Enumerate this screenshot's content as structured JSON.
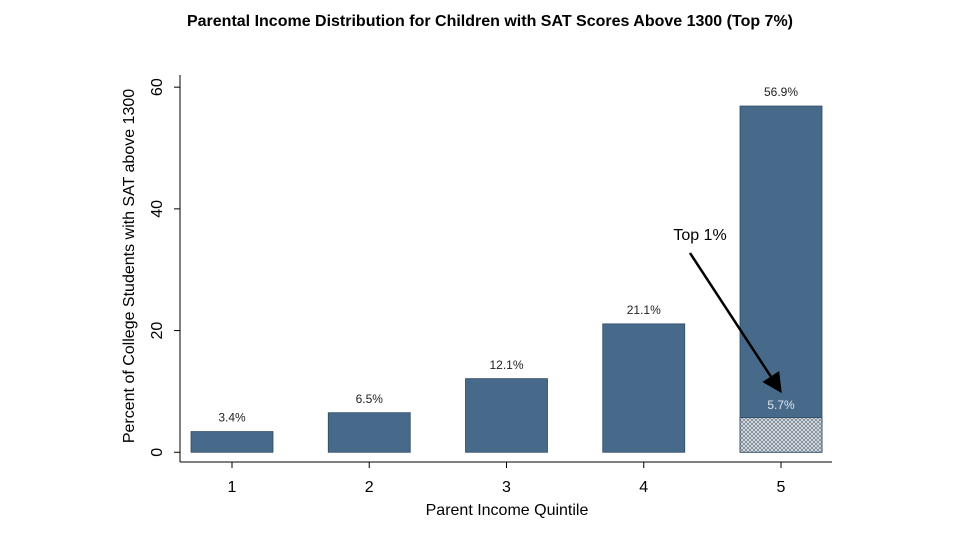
{
  "chart_data": {
    "type": "bar",
    "title": "Parental Income Distribution for Children with SAT Scores Above 1300 (Top 7%)",
    "x_label": "Parent Income Quintile",
    "y_label": "Percent of College Students with SAT above 1300",
    "categories": [
      "1",
      "2",
      "3",
      "4",
      "5"
    ],
    "values": [
      3.4,
      6.5,
      12.1,
      21.1,
      56.9
    ],
    "value_labels": [
      "3.4%",
      "6.5%",
      "12.1%",
      "21.1%",
      "56.9%"
    ],
    "color": "#476a8b",
    "highlight": {
      "values": [
        null,
        null,
        null,
        null,
        5.7
      ],
      "value_labels": [
        null,
        null,
        null,
        null,
        "5.7%"
      ]
    },
    "annotation": "Top 1%",
    "ylim": [
      -1.6,
      62
    ],
    "yticks": [
      0,
      20,
      40,
      60
    ]
  }
}
